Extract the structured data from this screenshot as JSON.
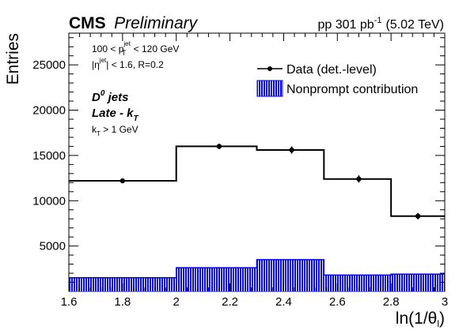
{
  "header": {
    "experiment": "CMS",
    "status": "Preliminary",
    "dataset": "pp 301 pb",
    "lumi_exp": "-1",
    "energy": "(5.02 TeV)"
  },
  "annotations": {
    "pt_low": "100 < p",
    "pt_sub": "T",
    "pt_sup": "jet",
    "pt_high": " < 120 GeV",
    "eta_left": "|η",
    "eta_sup": "jet",
    "eta_right": "| < 1.6, R=0.2",
    "d0_main": "D",
    "d0_sup": "0",
    "d0_rest": " jets",
    "late_main": "Late - k",
    "late_sub": "T",
    "kt_main": "k",
    "kt_sub": "T",
    "kt_rest": " > 1 GeV"
  },
  "legend": {
    "data_label": "Data (det.-level)",
    "nonprompt_label": "Nonprompt contribution"
  },
  "chart_data": {
    "type": "histogram",
    "xlabel": "ln(1/θ",
    "xlabel_sub": "l",
    "xlabel_close": ")",
    "ylabel": "Entries",
    "xlim": [
      1.6,
      3.0
    ],
    "ylim": [
      0,
      28500
    ],
    "x_ticks": [
      1.6,
      1.8,
      2.0,
      2.2,
      2.4,
      2.6,
      2.8,
      3.0
    ],
    "x_tick_labels": [
      "1.6",
      "1.8",
      "2",
      "2.2",
      "2.4",
      "2.6",
      "2.8",
      "3"
    ],
    "y_ticks": [
      5000,
      10000,
      15000,
      20000,
      25000
    ],
    "y_tick_labels": [
      "5000",
      "10000",
      "15000",
      "20000",
      "25000"
    ],
    "bin_edges": [
      1.6,
      2.0,
      2.3,
      2.55,
      2.8,
      3.0
    ],
    "series": [
      {
        "name": "Data (det.-level)",
        "kind": "histogram-with-points",
        "values": [
          12200,
          16000,
          15600,
          12400,
          8300
        ],
        "errors": [
          150,
          300,
          400,
          400,
          350
        ],
        "point_x": [
          1.8,
          2.16,
          2.43,
          2.68,
          2.9
        ],
        "color": "#000000"
      },
      {
        "name": "Nonprompt contribution",
        "kind": "filled-histogram",
        "values": [
          1500,
          2600,
          3500,
          1800,
          1900
        ],
        "color": "#0000ff"
      }
    ]
  }
}
